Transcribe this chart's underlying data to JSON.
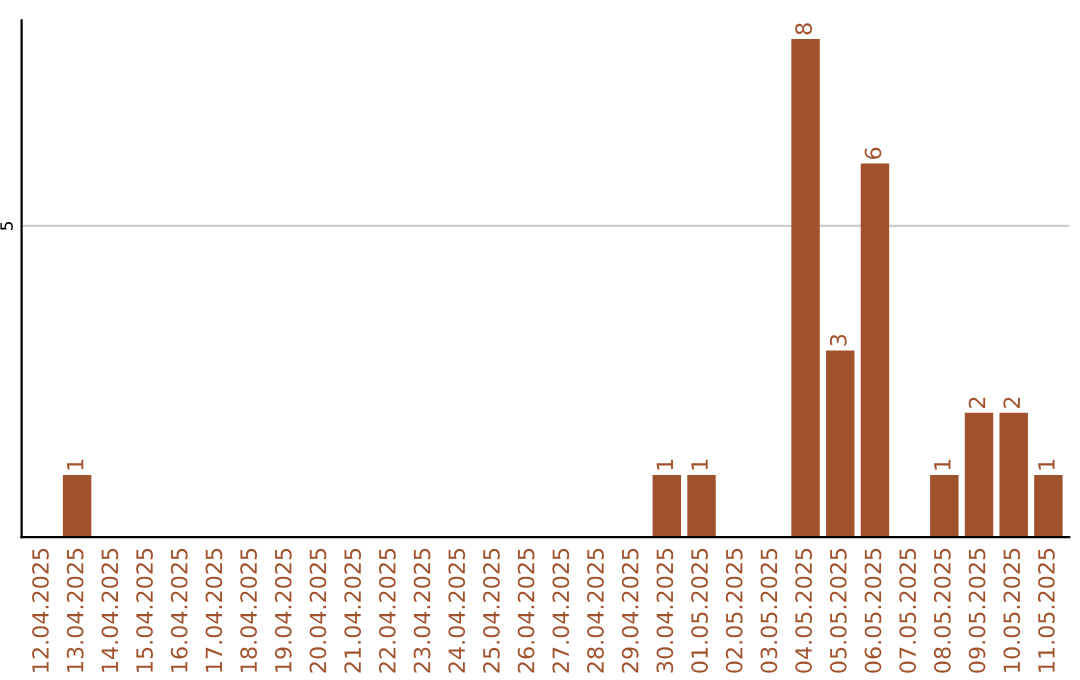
{
  "chart_data": {
    "type": "bar",
    "categories": [
      "12.04.2025",
      "13.04.2025",
      "14.04.2025",
      "15.04.2025",
      "16.04.2025",
      "17.04.2025",
      "18.04.2025",
      "19.04.2025",
      "20.04.2025",
      "21.04.2025",
      "22.04.2025",
      "23.04.2025",
      "24.04.2025",
      "25.04.2025",
      "26.04.2025",
      "27.04.2025",
      "28.04.2025",
      "29.04.2025",
      "30.04.2025",
      "01.05.2025",
      "02.05.2025",
      "03.05.2025",
      "04.05.2025",
      "05.05.2025",
      "06.05.2025",
      "07.05.2025",
      "08.05.2025",
      "09.05.2025",
      "10.05.2025",
      "11.05.2025"
    ],
    "values": [
      0,
      1,
      0,
      0,
      0,
      0,
      0,
      0,
      0,
      0,
      0,
      0,
      0,
      0,
      0,
      0,
      0,
      0,
      1,
      1,
      0,
      0,
      8,
      3,
      6,
      0,
      1,
      2,
      2,
      1
    ],
    "value_labels": [
      null,
      "1",
      null,
      null,
      null,
      null,
      null,
      null,
      null,
      null,
      null,
      null,
      null,
      null,
      null,
      null,
      null,
      null,
      "1",
      "1",
      null,
      null,
      "8",
      "3",
      "6",
      null,
      "1",
      "2",
      "2",
      "1"
    ],
    "color": "#a0522d",
    "ylim": [
      0,
      8.3
    ],
    "yticks": [
      5
    ],
    "grid": "y"
  }
}
